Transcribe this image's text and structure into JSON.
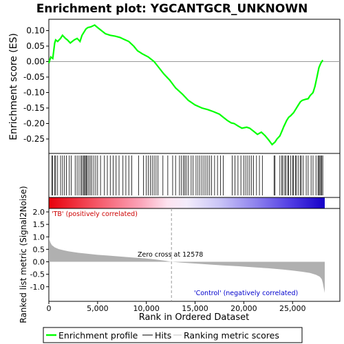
{
  "chart_data": [
    {
      "type": "line",
      "title": "Enrichment plot: YGCANTGCR_UNKNOWN",
      "xlabel": "",
      "ylabel": "Enrichment score (ES)",
      "xlim": [
        0,
        29000
      ],
      "ylim": [
        -0.29,
        0.13
      ],
      "y_ticks": [
        0.1,
        0.05,
        0.0,
        -0.05,
        -0.1,
        -0.15,
        -0.2,
        -0.25
      ],
      "y_tick_labels": [
        "0.10",
        "0.05",
        "0.00",
        "-0.05",
        "-0.10",
        "-0.15",
        "-0.20",
        "-0.25"
      ],
      "color": "#00ff00",
      "series": [
        {
          "name": "Enrichment profile",
          "x": [
            0,
            200,
            400,
            600,
            700,
            900,
            1200,
            1400,
            1700,
            1900,
            2200,
            2600,
            2900,
            3200,
            3400,
            3600,
            3800,
            4000,
            4300,
            4700,
            5000,
            5400,
            5800,
            6300,
            6800,
            7300,
            7700,
            8200,
            8700,
            9100,
            9600,
            10200,
            10800,
            11300,
            11800,
            12400,
            13000,
            13700,
            14300,
            15000,
            15700,
            16300,
            16900,
            17500,
            17900,
            18300,
            18700,
            19000,
            19400,
            19800,
            20300,
            20600,
            21000,
            21400,
            21800,
            22200,
            22600,
            22900,
            23200,
            23400,
            23700,
            23900,
            24100,
            24400,
            24600,
            24800,
            25100,
            25300,
            25600,
            25800,
            26000,
            26300,
            26600,
            26800,
            27100,
            27300,
            27500,
            27700,
            27900,
            28100
          ],
          "y": [
            -0.005,
            0.015,
            0.01,
            0.06,
            0.07,
            0.065,
            0.075,
            0.085,
            0.075,
            0.07,
            0.06,
            0.07,
            0.075,
            0.065,
            0.085,
            0.095,
            0.105,
            0.11,
            0.112,
            0.118,
            0.11,
            0.1,
            0.09,
            0.085,
            0.082,
            0.078,
            0.072,
            0.065,
            0.05,
            0.035,
            0.025,
            0.015,
            0.0,
            -0.02,
            -0.04,
            -0.06,
            -0.085,
            -0.105,
            -0.125,
            -0.14,
            -0.15,
            -0.155,
            -0.162,
            -0.17,
            -0.18,
            -0.19,
            -0.198,
            -0.2,
            -0.208,
            -0.215,
            -0.212,
            -0.215,
            -0.225,
            -0.235,
            -0.228,
            -0.24,
            -0.255,
            -0.268,
            -0.26,
            -0.25,
            -0.24,
            -0.225,
            -0.21,
            -0.19,
            -0.18,
            -0.175,
            -0.165,
            -0.155,
            -0.14,
            -0.13,
            -0.125,
            -0.122,
            -0.12,
            -0.11,
            -0.1,
            -0.08,
            -0.05,
            -0.02,
            -0.005,
            0.005
          ]
        }
      ]
    },
    {
      "type": "scatter",
      "name": "hits",
      "series": [
        {
          "name": "Hits",
          "x": [
            300,
            400,
            600,
            700,
            900,
            1200,
            1400,
            1600,
            1800,
            2100,
            2300,
            2700,
            2900,
            3100,
            3300,
            3400,
            3550,
            3650,
            3750,
            3850,
            3950,
            4100,
            4250,
            4400,
            4600,
            4800,
            5000,
            5300,
            5700,
            6000,
            6300,
            6600,
            6900,
            7200,
            7600,
            7900,
            8200,
            8500,
            9200,
            9700,
            10000,
            10200,
            10400,
            10600,
            10800,
            11000,
            11200,
            11700,
            12200,
            12700,
            13000,
            13400,
            13600,
            13800,
            13950,
            14100,
            14300,
            14600,
            14800,
            15100,
            15300,
            15500,
            15700,
            15900,
            16100,
            16300,
            16500,
            16700,
            17000,
            17300,
            17600,
            17900,
            18800,
            19100,
            19400,
            19700,
            20000,
            20200,
            20400,
            20600,
            20800,
            21000,
            21300,
            21600,
            21900,
            23100,
            23200,
            23700,
            23900,
            24000,
            24200,
            24300,
            24500,
            24600,
            24800,
            25000,
            25100,
            25300,
            25400,
            25600,
            25800,
            25900,
            26100,
            26400,
            26600,
            26900,
            27100,
            27400,
            27600,
            27700,
            27800,
            27900,
            28000,
            28100
          ]
        }
      ]
    },
    {
      "type": "area",
      "title": "",
      "xlabel": "Rank in Ordered Dataset",
      "ylabel": "Ranked list metric (Signal2Noise)",
      "xlim": [
        0,
        29000
      ],
      "ylim": [
        -1.5,
        2.0
      ],
      "x_ticks": [
        0,
        5000,
        10000,
        15000,
        20000,
        25000
      ],
      "x_tick_labels": [
        "0",
        "5,000",
        "10,000",
        "15,000",
        "20,000",
        "25,000"
      ],
      "y_ticks": [
        2.0,
        1.5,
        1.0,
        0.5,
        0.0,
        -0.5,
        -1.0
      ],
      "y_tick_labels": [
        "2.0",
        "1.5",
        "1.0",
        "0.5",
        "0.0",
        "-0.5",
        "-1.0"
      ],
      "series": [
        {
          "name": "Ranking metric scores",
          "x": [
            0,
            50,
            150,
            300,
            600,
            1000,
            1500,
            2000,
            3000,
            4000,
            5000,
            6000,
            7000,
            8000,
            9000,
            10000,
            11000,
            12000,
            12578,
            13500,
            15000,
            16500,
            18000,
            19500,
            21000,
            22500,
            24000,
            25000,
            26000,
            26800,
            27400,
            27800,
            28000,
            28100,
            28200,
            28300
          ],
          "y": [
            1.0,
            0.9,
            0.78,
            0.67,
            0.58,
            0.51,
            0.46,
            0.42,
            0.36,
            0.32,
            0.28,
            0.25,
            0.22,
            0.19,
            0.16,
            0.13,
            0.09,
            0.04,
            0.0,
            -0.03,
            -0.07,
            -0.11,
            -0.15,
            -0.18,
            -0.22,
            -0.26,
            -0.31,
            -0.35,
            -0.4,
            -0.45,
            -0.52,
            -0.6,
            -0.7,
            -0.85,
            -1.05,
            -1.25
          ]
        }
      ],
      "annotations": {
        "zero_cross": "Zero cross at 12578",
        "positive_label": "'TB' (positively correlated)",
        "negative_label": "'Control' (negatively correlated)"
      }
    }
  ],
  "legend": {
    "items": [
      {
        "label": "Enrichment profile",
        "color": "#00ff00"
      },
      {
        "label": "Hits",
        "color": "#000000"
      },
      {
        "label": "Ranking metric scores",
        "color": "#c0c0c0"
      }
    ]
  },
  "colors": {
    "profile": "#00ff00",
    "positive_text": "#cc0000",
    "negative_text": "#0000cc",
    "metric_fill": "#b0b0b0"
  }
}
